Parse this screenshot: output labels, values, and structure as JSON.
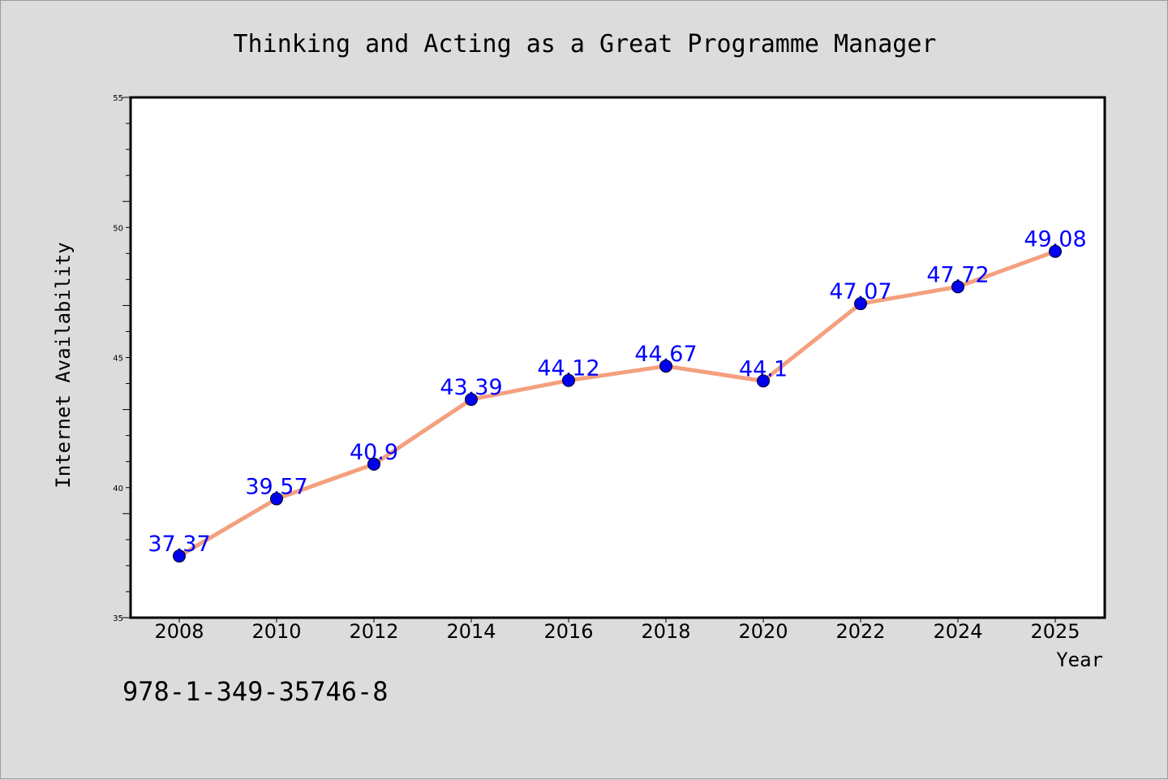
{
  "chart_data": {
    "type": "line",
    "title": "Thinking and Acting as a Great Programme Manager",
    "xlabel": "Year",
    "ylabel": "Internet Availability",
    "x": [
      "2008",
      "2010",
      "2012",
      "2014",
      "2016",
      "2018",
      "2020",
      "2022",
      "2024",
      "2025"
    ],
    "series": [
      {
        "values": [
          37.37,
          39.57,
          40.9,
          43.39,
          44.12,
          44.67,
          44.1,
          47.07,
          47.72,
          49.08
        ],
        "labels": [
          "37.37",
          "39.57",
          "40.9",
          "43.39",
          "44.12",
          "44.67",
          "44.1",
          "47.07",
          "47.72",
          "49.08"
        ],
        "line_color": "#f4a07e",
        "marker_color": "#0000ee"
      }
    ],
    "ylim": [
      35,
      55
    ],
    "yticks": [
      "35",
      "40",
      "45",
      "50",
      "55"
    ],
    "grid": false,
    "legend": "none"
  },
  "footer": {
    "isbn": "978-1-349-35746-8"
  }
}
